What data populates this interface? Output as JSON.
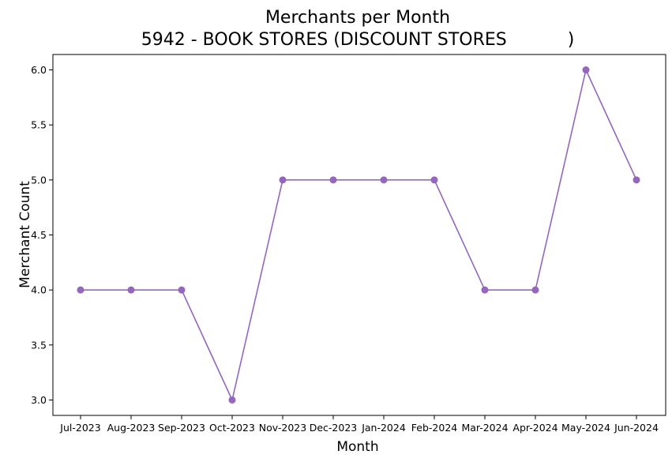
{
  "chart_data": {
    "type": "line",
    "title": "Merchants per Month",
    "subtitle": "5942 - BOOK STORES (DISCOUNT STORES           )",
    "xlabel": "Month",
    "ylabel": "Merchant Count",
    "categories": [
      "Jul-2023",
      "Aug-2023",
      "Sep-2023",
      "Oct-2023",
      "Nov-2023",
      "Dec-2023",
      "Jan-2024",
      "Feb-2024",
      "Mar-2024",
      "Apr-2024",
      "May-2024",
      "Jun-2024"
    ],
    "values": [
      4,
      4,
      4,
      3,
      5,
      5,
      5,
      5,
      4,
      4,
      6,
      5
    ],
    "ylim": [
      2.86,
      6.14
    ],
    "yticks": [
      "3.0",
      "3.5",
      "4.0",
      "4.5",
      "5.0",
      "5.5",
      "6.0"
    ],
    "grid": false,
    "legend": "none",
    "color": "#9467bd"
  }
}
